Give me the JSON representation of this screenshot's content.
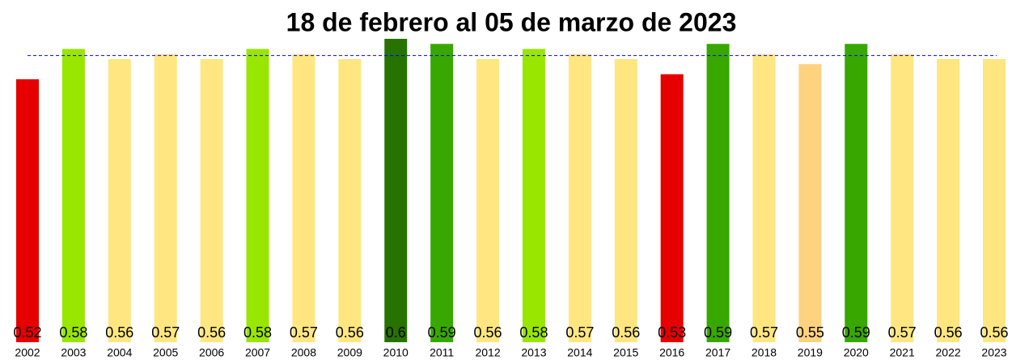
{
  "chart_data": {
    "type": "bar",
    "title": "18 de febrero al 05 de marzo de 2023",
    "categories": [
      "2002",
      "2003",
      "2004",
      "2005",
      "2006",
      "2007",
      "2008",
      "2009",
      "2010",
      "2011",
      "2012",
      "2013",
      "2014",
      "2015",
      "2016",
      "2017",
      "2018",
      "2019",
      "2020",
      "2021",
      "2022",
      "2023"
    ],
    "values": [
      0.52,
      0.58,
      0.56,
      0.57,
      0.56,
      0.58,
      0.57,
      0.56,
      0.6,
      0.59,
      0.56,
      0.58,
      0.57,
      0.56,
      0.53,
      0.59,
      0.57,
      0.55,
      0.59,
      0.57,
      0.56,
      0.56
    ],
    "colors": [
      "#e60000",
      "#99e600",
      "#ffe680",
      "#ffe680",
      "#ffe680",
      "#99e600",
      "#ffe680",
      "#ffe680",
      "#267300",
      "#38a800",
      "#ffe680",
      "#99e600",
      "#ffe680",
      "#ffe680",
      "#e60000",
      "#38a800",
      "#ffe680",
      "#ffd280",
      "#38a800",
      "#ffe680",
      "#ffe680",
      "#ffe680"
    ],
    "ylim": [
      0,
      0.6
    ],
    "reference_line": 0.567,
    "reference_color": "#0000ff"
  }
}
